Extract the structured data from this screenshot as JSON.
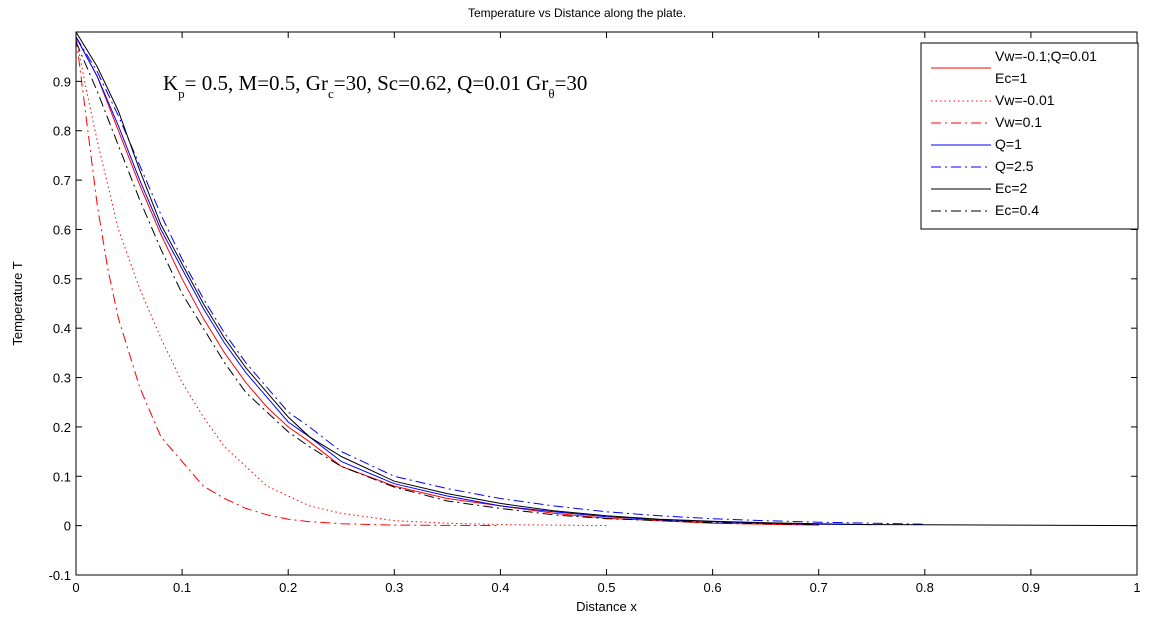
{
  "chart_data": {
    "type": "line",
    "title": "Temperature vs Distance along the plate.",
    "xlabel": "Distance x",
    "ylabel": "Temperature T",
    "xlim": [
      0,
      1
    ],
    "ylim": [
      -0.1,
      1
    ],
    "xticks": [
      0,
      0.1,
      0.2,
      0.3,
      0.4,
      0.5,
      0.6,
      0.7,
      0.8,
      0.9,
      1
    ],
    "xtick_labels": [
      "0",
      "0.1",
      "0.2",
      "0.3",
      "0.4",
      "0.5",
      "0.6",
      "0.7",
      "0.8",
      "0.9",
      "1"
    ],
    "yticks": [
      -0.1,
      0,
      0.1,
      0.2,
      0.3,
      0.4,
      0.5,
      0.6,
      0.7,
      0.8,
      0.9
    ],
    "ytick_labels": [
      "-0.1",
      "0",
      "0.1",
      "0.2",
      "0.3",
      "0.4",
      "0.5",
      "0.6",
      "0.7",
      "0.8",
      "0.9"
    ],
    "grid": false,
    "legend_position": "top-right",
    "annotation": {
      "text_parts": [
        {
          "text": "K",
          "sub": false
        },
        {
          "text": "p",
          "sub": true
        },
        {
          "text": "= 0.5, M=0.5, Gr",
          "sub": false
        },
        {
          "text": "c",
          "sub": true
        },
        {
          "text": "=30, Sc=0.62, Q=0.01 Gr",
          "sub": false
        },
        {
          "text": "θ",
          "sub": true
        },
        {
          "text": "=30",
          "sub": false
        }
      ]
    },
    "series": [
      {
        "name": "Vw=-0.1;Q=0.01",
        "name_line2": "Ec=1",
        "color": "#ff0000",
        "dash": "solid",
        "x": [
          0,
          0.02,
          0.04,
          0.06,
          0.08,
          0.1,
          0.12,
          0.14,
          0.16,
          0.18,
          0.2,
          0.22,
          0.25,
          0.3,
          0.35,
          0.4,
          0.45,
          0.5,
          0.55,
          0.6,
          0.65,
          0.7
        ],
        "y": [
          0.99,
          0.91,
          0.8,
          0.69,
          0.59,
          0.5,
          0.42,
          0.35,
          0.29,
          0.24,
          0.2,
          0.17,
          0.12,
          0.08,
          0.055,
          0.04,
          0.025,
          0.015,
          0.01,
          0.005,
          0.003,
          0.001
        ]
      },
      {
        "name": "Vw=-0.01",
        "color": "#ff0000",
        "dash": "dotted",
        "x": [
          0,
          0.01,
          0.02,
          0.04,
          0.06,
          0.08,
          0.1,
          0.12,
          0.14,
          0.16,
          0.18,
          0.2,
          0.22,
          0.25,
          0.3,
          0.35,
          0.4,
          0.5
        ],
        "y": [
          0.99,
          0.88,
          0.78,
          0.6,
          0.48,
          0.38,
          0.29,
          0.22,
          0.16,
          0.12,
          0.08,
          0.06,
          0.04,
          0.025,
          0.01,
          0.005,
          0.002,
          0.0
        ]
      },
      {
        "name": "Vw=0.1",
        "color": "#ff0000",
        "dash": "dashdot",
        "x": [
          0,
          0.01,
          0.02,
          0.03,
          0.04,
          0.05,
          0.06,
          0.08,
          0.1,
          0.12,
          0.14,
          0.16,
          0.18,
          0.2,
          0.22,
          0.25,
          0.3,
          0.4
        ],
        "y": [
          0.99,
          0.82,
          0.65,
          0.52,
          0.42,
          0.35,
          0.28,
          0.18,
          0.13,
          0.08,
          0.055,
          0.035,
          0.022,
          0.013,
          0.008,
          0.004,
          0.001,
          0.0
        ]
      },
      {
        "name": "Q=1",
        "color": "#0000ff",
        "dash": "solid",
        "x": [
          0,
          0.02,
          0.04,
          0.06,
          0.08,
          0.1,
          0.12,
          0.14,
          0.16,
          0.18,
          0.2,
          0.22,
          0.25,
          0.3,
          0.35,
          0.4,
          0.45,
          0.5,
          0.55,
          0.6,
          0.65,
          0.7,
          0.75
        ],
        "y": [
          0.99,
          0.91,
          0.81,
          0.7,
          0.6,
          0.52,
          0.44,
          0.37,
          0.31,
          0.26,
          0.21,
          0.18,
          0.13,
          0.085,
          0.06,
          0.04,
          0.028,
          0.018,
          0.012,
          0.008,
          0.005,
          0.003,
          0.002
        ]
      },
      {
        "name": "Q=2.5",
        "color": "#0000ff",
        "dash": "dashdot",
        "x": [
          0,
          0.02,
          0.04,
          0.06,
          0.08,
          0.1,
          0.12,
          0.14,
          0.16,
          0.18,
          0.2,
          0.22,
          0.25,
          0.3,
          0.35,
          0.4,
          0.45,
          0.5,
          0.55,
          0.6,
          0.65,
          0.7,
          0.75,
          0.8
        ],
        "y": [
          0.99,
          0.92,
          0.83,
          0.73,
          0.63,
          0.54,
          0.46,
          0.39,
          0.33,
          0.28,
          0.23,
          0.2,
          0.15,
          0.1,
          0.075,
          0.055,
          0.04,
          0.028,
          0.02,
          0.014,
          0.01,
          0.007,
          0.005,
          0.003
        ]
      },
      {
        "name": "Ec=2",
        "color": "#000000",
        "dash": "solid",
        "x": [
          0,
          0.02,
          0.04,
          0.06,
          0.08,
          0.1,
          0.12,
          0.14,
          0.16,
          0.18,
          0.2,
          0.22,
          0.25,
          0.3,
          0.35,
          0.4,
          0.45,
          0.5,
          0.55,
          0.6,
          0.65,
          0.7,
          0.75,
          1
        ],
        "y": [
          1.0,
          0.93,
          0.84,
          0.72,
          0.61,
          0.53,
          0.45,
          0.38,
          0.32,
          0.27,
          0.22,
          0.18,
          0.14,
          0.09,
          0.065,
          0.045,
          0.03,
          0.02,
          0.013,
          0.009,
          0.006,
          0.004,
          0.002,
          0.0
        ]
      },
      {
        "name": "Ec=0.4",
        "color": "#000000",
        "dash": "dashdot",
        "x": [
          0,
          0.02,
          0.04,
          0.06,
          0.08,
          0.1,
          0.12,
          0.14,
          0.16,
          0.18,
          0.2,
          0.22,
          0.25,
          0.3,
          0.35,
          0.4,
          0.45,
          0.5,
          0.55,
          0.6,
          0.65,
          0.7
        ],
        "y": [
          0.98,
          0.88,
          0.77,
          0.66,
          0.56,
          0.47,
          0.4,
          0.33,
          0.27,
          0.23,
          0.19,
          0.16,
          0.12,
          0.078,
          0.05,
          0.035,
          0.022,
          0.014,
          0.01,
          0.006,
          0.004,
          0.002
        ]
      }
    ]
  }
}
